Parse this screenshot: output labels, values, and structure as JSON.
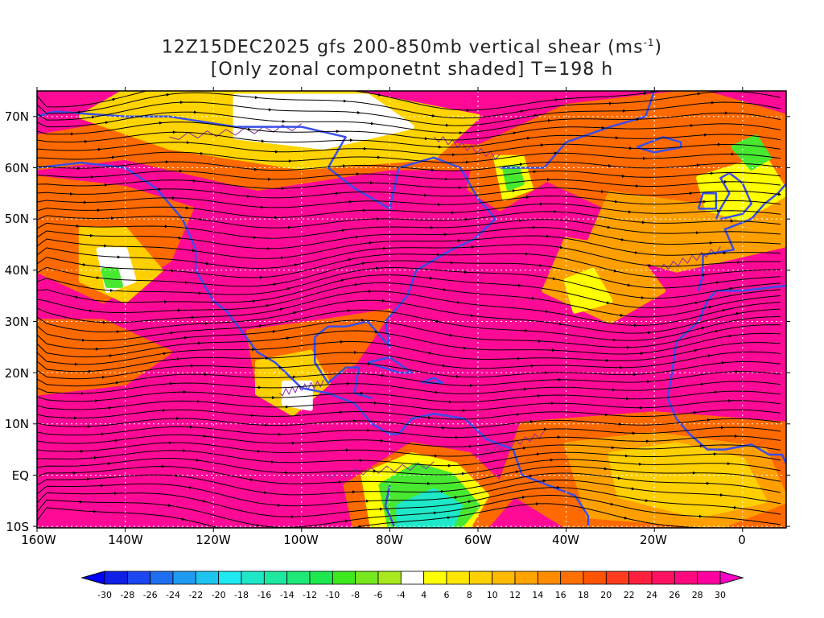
{
  "title": {
    "line1_prefix": "12Z15DEC2025 gfs 200-850mb vertical shear (ms",
    "line1_sup": "-1",
    "line1_suffix": ")",
    "line2": "[Only zonal componetnt shaded] T=198 h"
  },
  "map": {
    "lat_labels": [
      "70N",
      "60N",
      "50N",
      "40N",
      "30N",
      "20N",
      "10N",
      "EQ",
      "10S"
    ],
    "lon_labels": [
      "160W",
      "140W",
      "120W",
      "100W",
      "80W",
      "60W",
      "40W",
      "20W",
      "0"
    ],
    "coastline_color": "#3a4ee8",
    "streamline_color": "#000000",
    "contour_color": "#8a2c9e"
  },
  "colorbar": {
    "labels": [
      "-30",
      "-28",
      "-26",
      "-24",
      "-22",
      "-20",
      "-18",
      "-16",
      "-14",
      "-12",
      "-10",
      "-8",
      "-6",
      "-4",
      "4",
      "6",
      "8",
      "10",
      "12",
      "14",
      "16",
      "18",
      "20",
      "22",
      "24",
      "26",
      "28",
      "30"
    ],
    "colors": [
      "#1020e8",
      "#1c46f0",
      "#1e6ef0",
      "#1e9af0",
      "#1ec4f0",
      "#1ee8f0",
      "#1ee8c8",
      "#1ee8a0",
      "#1ee878",
      "#1ee850",
      "#3ee81e",
      "#78e81e",
      "#a8e81e",
      "#ffffff",
      "#ffff00",
      "#ffe600",
      "#ffd000",
      "#ffba00",
      "#ffa400",
      "#ff8c00",
      "#ff7000",
      "#ff5400",
      "#ff3c1e",
      "#ff2040",
      "#ff1060",
      "#ff0880",
      "#ff00a0"
    ],
    "under_color": "#0000ff",
    "over_color": "#ff00c8"
  }
}
